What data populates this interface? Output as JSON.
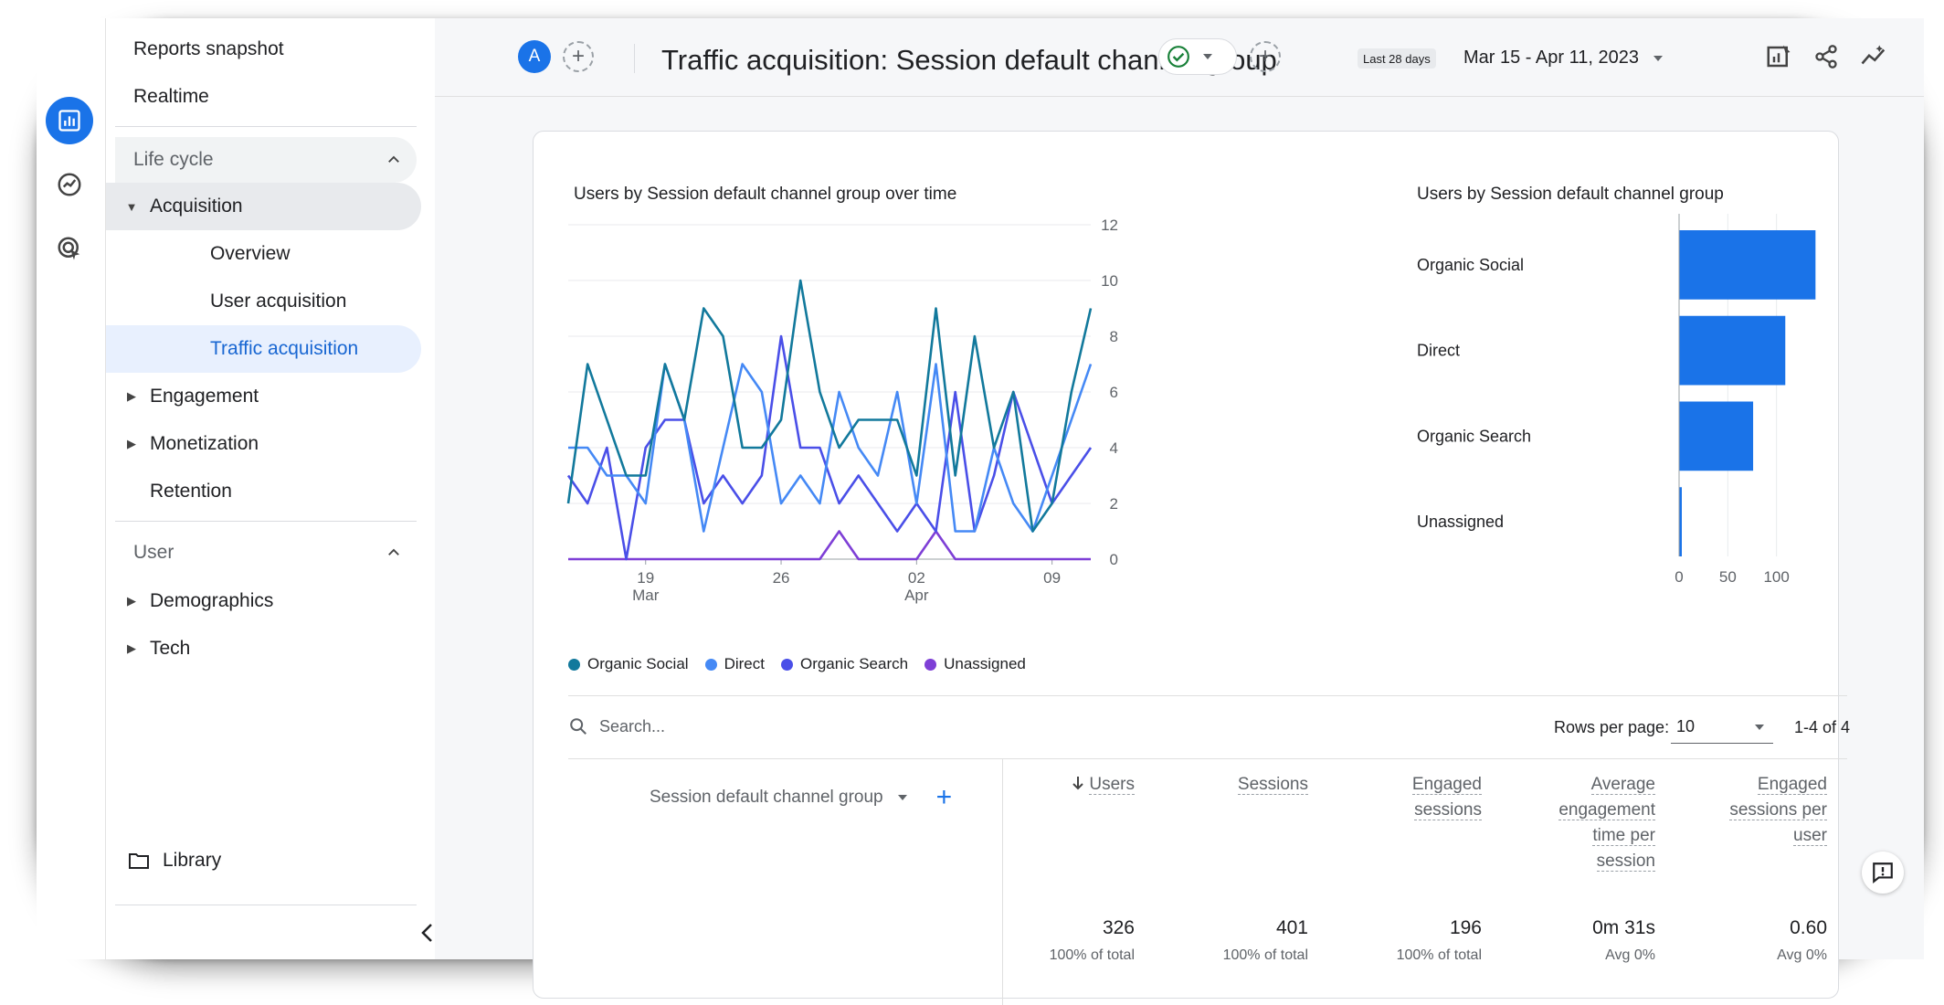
{
  "sidebar": {
    "top_items": [
      "Reports snapshot",
      "Realtime"
    ],
    "lifecycle": {
      "header": "Life cycle",
      "acquisition": {
        "label": "Acquisition",
        "children": [
          "Overview",
          "User acquisition",
          "Traffic acquisition"
        ]
      },
      "engagement": "Engagement",
      "monetization": "Monetization",
      "retention": "Retention"
    },
    "user": {
      "header": "User",
      "demographics": "Demographics",
      "tech": "Tech"
    },
    "library": "Library"
  },
  "header": {
    "avatar_letter": "A",
    "title": "Traffic acquisition: Session default channel group",
    "date_chip": "Last 28 days",
    "date_range": "Mar 15 - Apr 11, 2023"
  },
  "colors": {
    "organic_social": "#12799c",
    "direct": "#4589f5",
    "organic_search": "#4a4fe8",
    "unassigned": "#7e3fd6",
    "bar": "#1a73e8"
  },
  "line_chart": {
    "title": "Users by Session default channel group over time",
    "legend": [
      "Organic Social",
      "Direct",
      "Organic Search",
      "Unassigned"
    ]
  },
  "bar_chart": {
    "title": "Users by Session default channel group"
  },
  "chart_data": [
    {
      "type": "line",
      "title": "Users by Session default channel group over time",
      "x": [
        "Mar 15",
        "Mar 16",
        "Mar 17",
        "Mar 18",
        "Mar 19",
        "Mar 20",
        "Mar 21",
        "Mar 22",
        "Mar 23",
        "Mar 24",
        "Mar 25",
        "Mar 26",
        "Mar 27",
        "Mar 28",
        "Mar 29",
        "Mar 30",
        "Mar 31",
        "Apr 1",
        "Apr 2",
        "Apr 3",
        "Apr 4",
        "Apr 5",
        "Apr 6",
        "Apr 7",
        "Apr 8",
        "Apr 9",
        "Apr 10",
        "Apr 11"
      ],
      "x_ticks": [
        {
          "pos": 4,
          "label": "19",
          "sub": "Mar"
        },
        {
          "pos": 11,
          "label": "26",
          "sub": ""
        },
        {
          "pos": 18,
          "label": "02",
          "sub": "Apr"
        },
        {
          "pos": 25,
          "label": "09",
          "sub": ""
        }
      ],
      "y_ticks": [
        0,
        2,
        4,
        6,
        8,
        10,
        12
      ],
      "ylim": [
        0,
        12
      ],
      "series": [
        {
          "name": "Organic Social",
          "values": [
            2,
            7,
            5,
            3,
            3,
            7,
            5,
            9,
            8,
            4,
            4,
            5,
            10,
            6,
            4,
            5,
            5,
            5,
            3,
            9,
            3,
            8,
            4,
            6,
            1,
            2,
            6,
            9
          ]
        },
        {
          "name": "Direct",
          "values": [
            4,
            4,
            3,
            3,
            2,
            7,
            5,
            1,
            4,
            7,
            6,
            2,
            3,
            2,
            6,
            4,
            3,
            6,
            2,
            7,
            1,
            1,
            4,
            2,
            1,
            3,
            5,
            7
          ]
        },
        {
          "name": "Organic Search",
          "values": [
            3,
            2,
            4,
            0,
            4,
            5,
            5,
            2,
            3,
            2,
            3,
            8,
            4,
            4,
            2,
            3,
            2,
            1,
            2,
            1,
            6,
            1,
            3,
            6,
            4,
            2,
            3,
            4
          ]
        },
        {
          "name": "Unassigned",
          "values": [
            0,
            0,
            0,
            0,
            0,
            0,
            0,
            0,
            0,
            0,
            0,
            0,
            0,
            0,
            1,
            0,
            0,
            0,
            0,
            1,
            0,
            0,
            0,
            0,
            0,
            0,
            0,
            0
          ]
        }
      ]
    },
    {
      "type": "bar",
      "orientation": "horizontal",
      "title": "Users by Session default channel group",
      "categories": [
        "Organic Social",
        "Direct",
        "Organic Search",
        "Unassigned"
      ],
      "values": [
        140,
        109,
        76,
        2
      ],
      "x_ticks": [
        0,
        50,
        100
      ],
      "xlim": [
        0,
        150
      ]
    }
  ],
  "table": {
    "search_placeholder": "Search...",
    "rows_per_page_label": "Rows per page:",
    "rows_per_page": "10",
    "pager": "1-4 of 4",
    "dimension_header": "Session default channel group",
    "metrics": [
      {
        "head": [
          "Users"
        ],
        "value": "326",
        "sub": "100% of total",
        "sorted": true
      },
      {
        "head": [
          "Sessions"
        ],
        "value": "401",
        "sub": "100% of total"
      },
      {
        "head": [
          "Engaged",
          "sessions"
        ],
        "value": "196",
        "sub": "100% of total"
      },
      {
        "head": [
          "Average",
          "engagement",
          "time per",
          "session"
        ],
        "value": "0m 31s",
        "sub": "Avg 0%"
      },
      {
        "head": [
          "Engaged",
          "sessions per",
          "user"
        ],
        "value": "0.60",
        "sub": "Avg 0%"
      }
    ]
  }
}
